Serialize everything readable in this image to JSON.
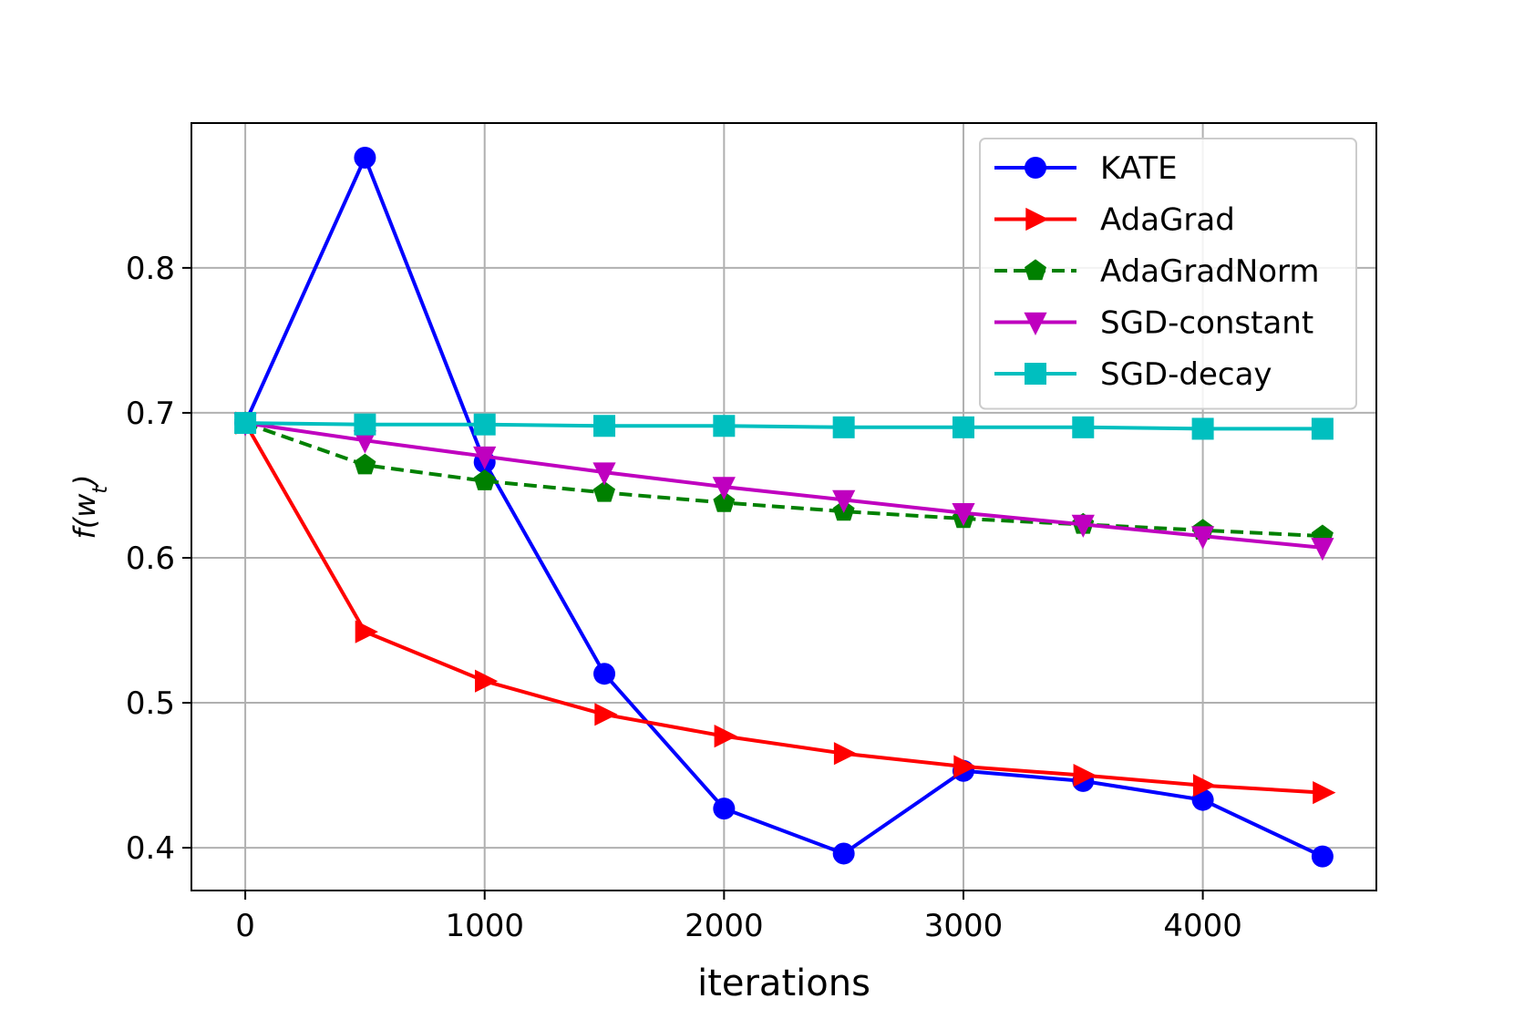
{
  "chart_data": {
    "type": "line",
    "title": "",
    "xlabel": "iterations",
    "ylabel": {
      "main": "f(w",
      "subscript": "t",
      "close": ")"
    },
    "xlim": [
      -225,
      4725
    ],
    "ylim": [
      0.3705,
      0.8999
    ],
    "xticks": [
      0,
      1000,
      2000,
      3000,
      4000
    ],
    "xtick_labels": [
      "0",
      "1000",
      "2000",
      "3000",
      "4000"
    ],
    "yticks": [
      0.4,
      0.5,
      0.6,
      0.7,
      0.8
    ],
    "ytick_labels": [
      "0.4",
      "0.5",
      "0.6",
      "0.7",
      "0.8"
    ],
    "grid": true,
    "legend_position": "top-right",
    "x": [
      0,
      500,
      1000,
      1500,
      2000,
      2500,
      3000,
      3500,
      4000,
      4500
    ],
    "series": [
      {
        "name": "KATE",
        "color": "#0000ff",
        "marker": "circle",
        "dash": "solid",
        "values": [
          0.693,
          0.876,
          0.666,
          0.52,
          0.427,
          0.396,
          0.453,
          0.446,
          0.433,
          0.394
        ]
      },
      {
        "name": "AdaGrad",
        "color": "#ff0000",
        "marker": "triangle-right",
        "dash": "solid",
        "values": [
          0.693,
          0.549,
          0.515,
          0.492,
          0.477,
          0.465,
          0.456,
          0.45,
          0.443,
          0.438
        ]
      },
      {
        "name": "AdaGradNorm",
        "color": "#008000",
        "marker": "pentagon",
        "dash": "dashed",
        "values": [
          0.693,
          0.664,
          0.653,
          0.645,
          0.638,
          0.632,
          0.627,
          0.623,
          0.619,
          0.615
        ]
      },
      {
        "name": "SGD-constant",
        "color": "#bf00bf",
        "marker": "triangle-down",
        "dash": "solid",
        "values": [
          0.693,
          0.681,
          0.67,
          0.659,
          0.649,
          0.64,
          0.631,
          0.623,
          0.615,
          0.607
        ]
      },
      {
        "name": "SGD-decay",
        "color": "#00bfbf",
        "marker": "square",
        "dash": "solid",
        "values": [
          0.693,
          0.692,
          0.692,
          0.691,
          0.691,
          0.69,
          0.69,
          0.69,
          0.689,
          0.689
        ]
      }
    ]
  }
}
